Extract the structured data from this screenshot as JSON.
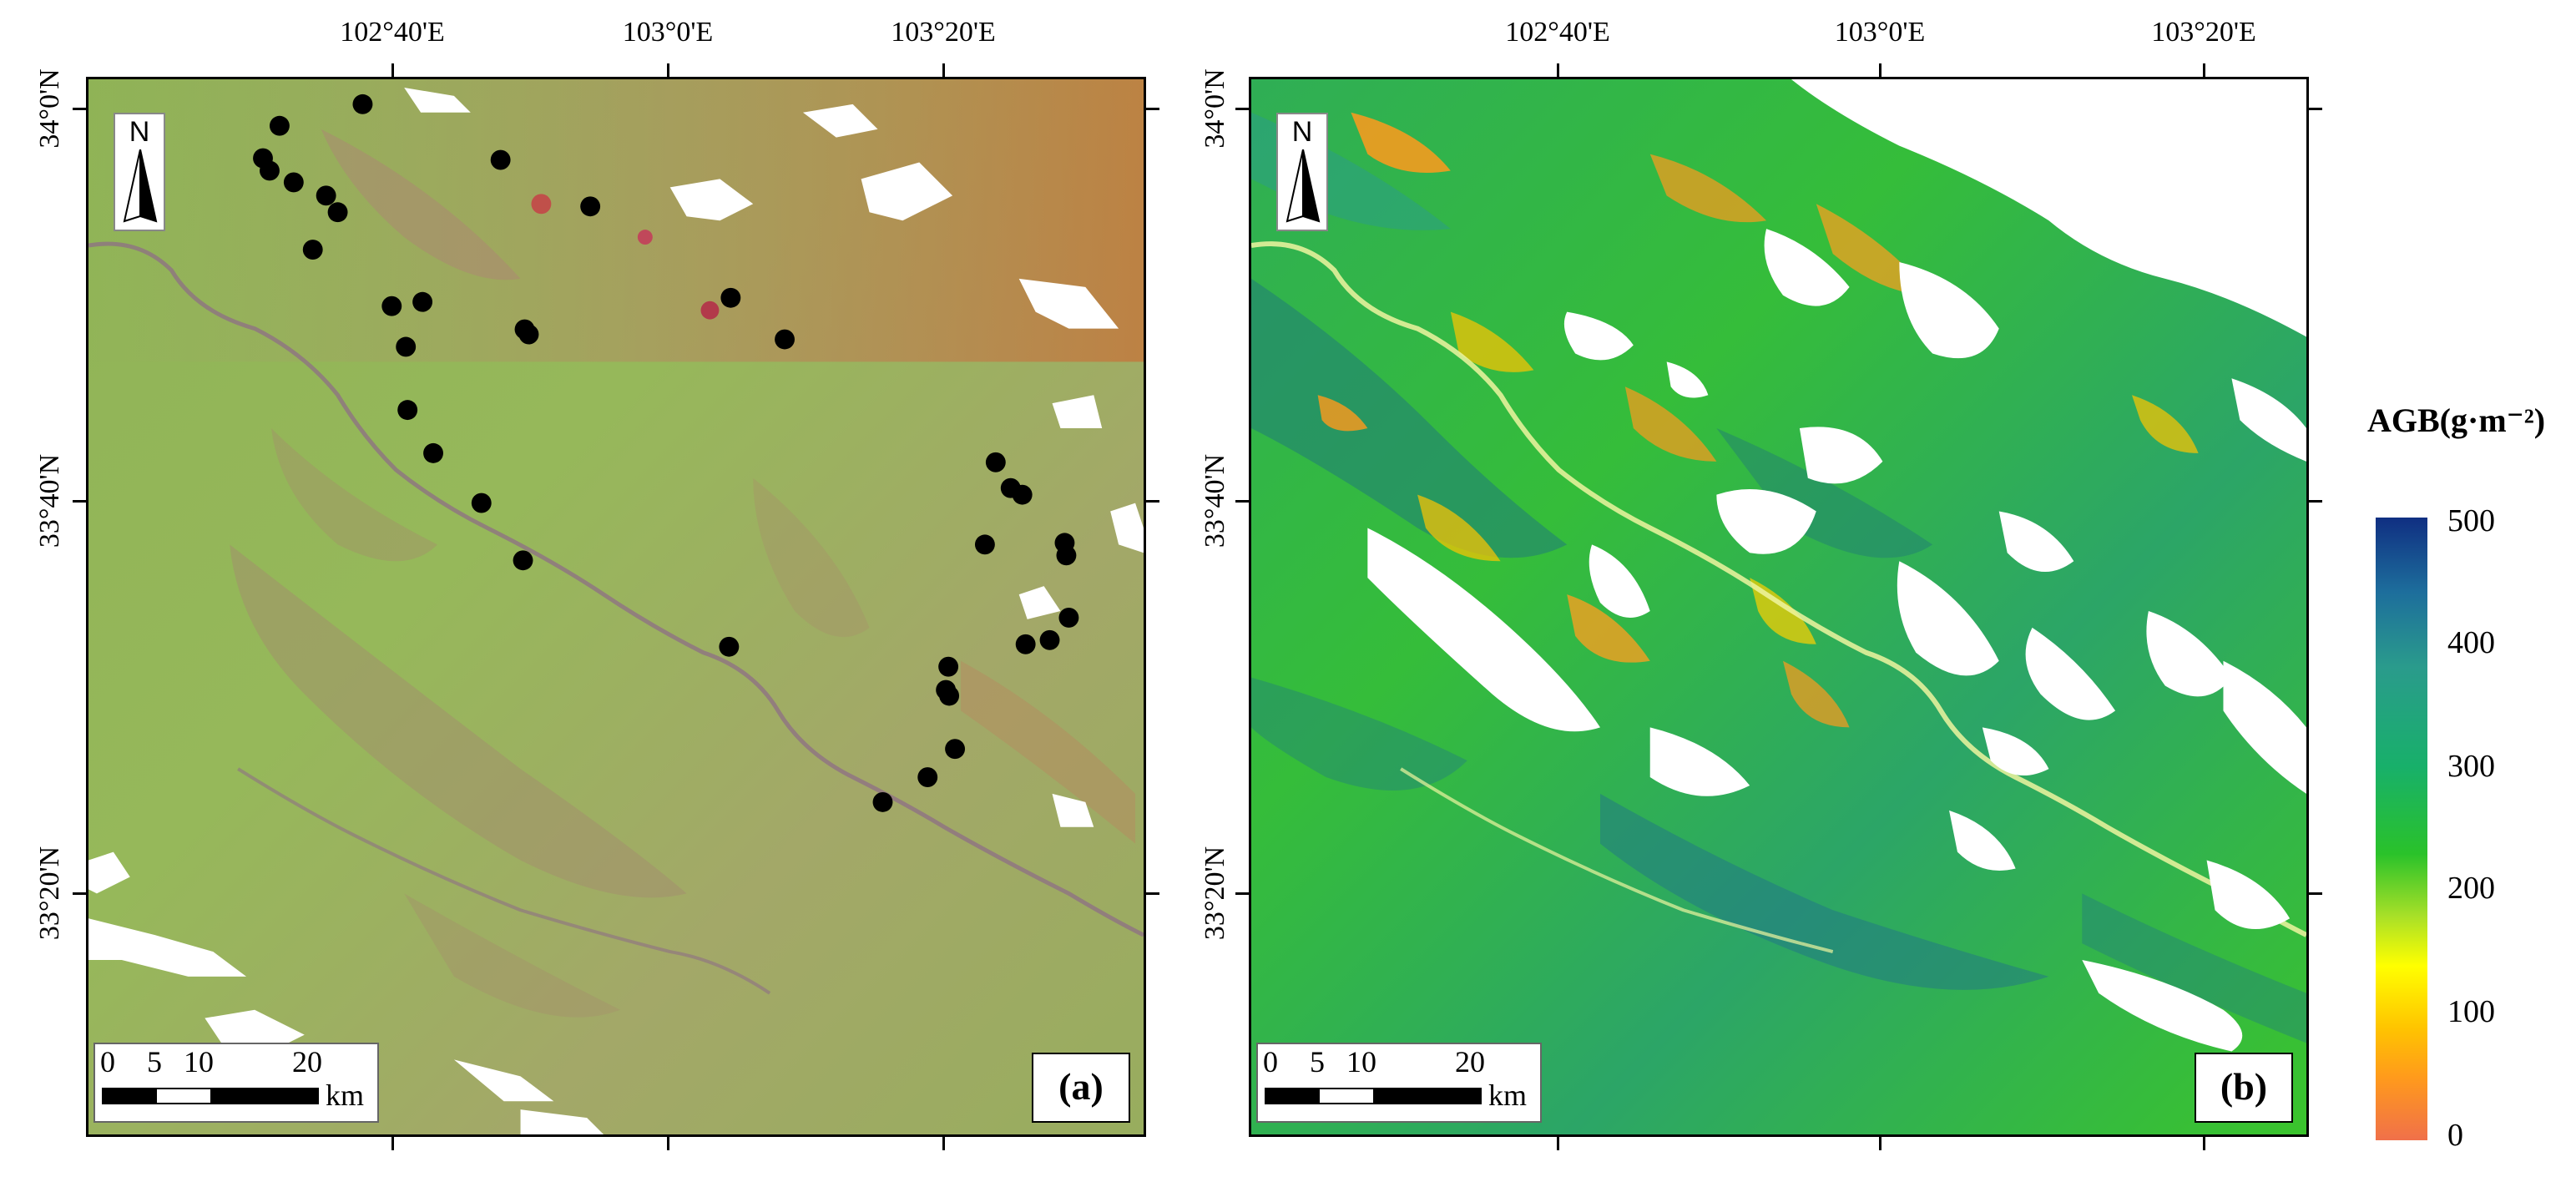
{
  "figure": {
    "panels": [
      {
        "id": "a",
        "label": "(a)",
        "north_letter": "N",
        "scale_labels": [
          "0",
          "5",
          "10",
          "20"
        ],
        "scale_unit": "km"
      },
      {
        "id": "b",
        "label": "(b)",
        "north_letter": "N",
        "scale_labels": [
          "0",
          "5",
          "10",
          "20"
        ],
        "scale_unit": "km"
      }
    ],
    "longitude_labels": [
      "102°40'E",
      "103°0'E",
      "103°20'E"
    ],
    "latitude_labels": [
      "34°0'N",
      "33°40'N",
      "33°20'N"
    ],
    "legend": {
      "title": "AGB(g·m⁻²)",
      "ticks": [
        "500",
        "400",
        "300",
        "200",
        "100",
        "0"
      ],
      "colors": [
        "#102f82",
        "#2a9b8c",
        "#2ac22a",
        "#ffff00",
        "#ff9a1c",
        "#f0704a"
      ]
    },
    "colors": {
      "panel_a_base": "#8fb94e",
      "panel_a_dark": "#9d7d62",
      "panel_b_base": "#36bd3a",
      "panel_b_dark": "#1f7b78",
      "sample_point": "#000000",
      "nodata": "#ffffff"
    }
  }
}
